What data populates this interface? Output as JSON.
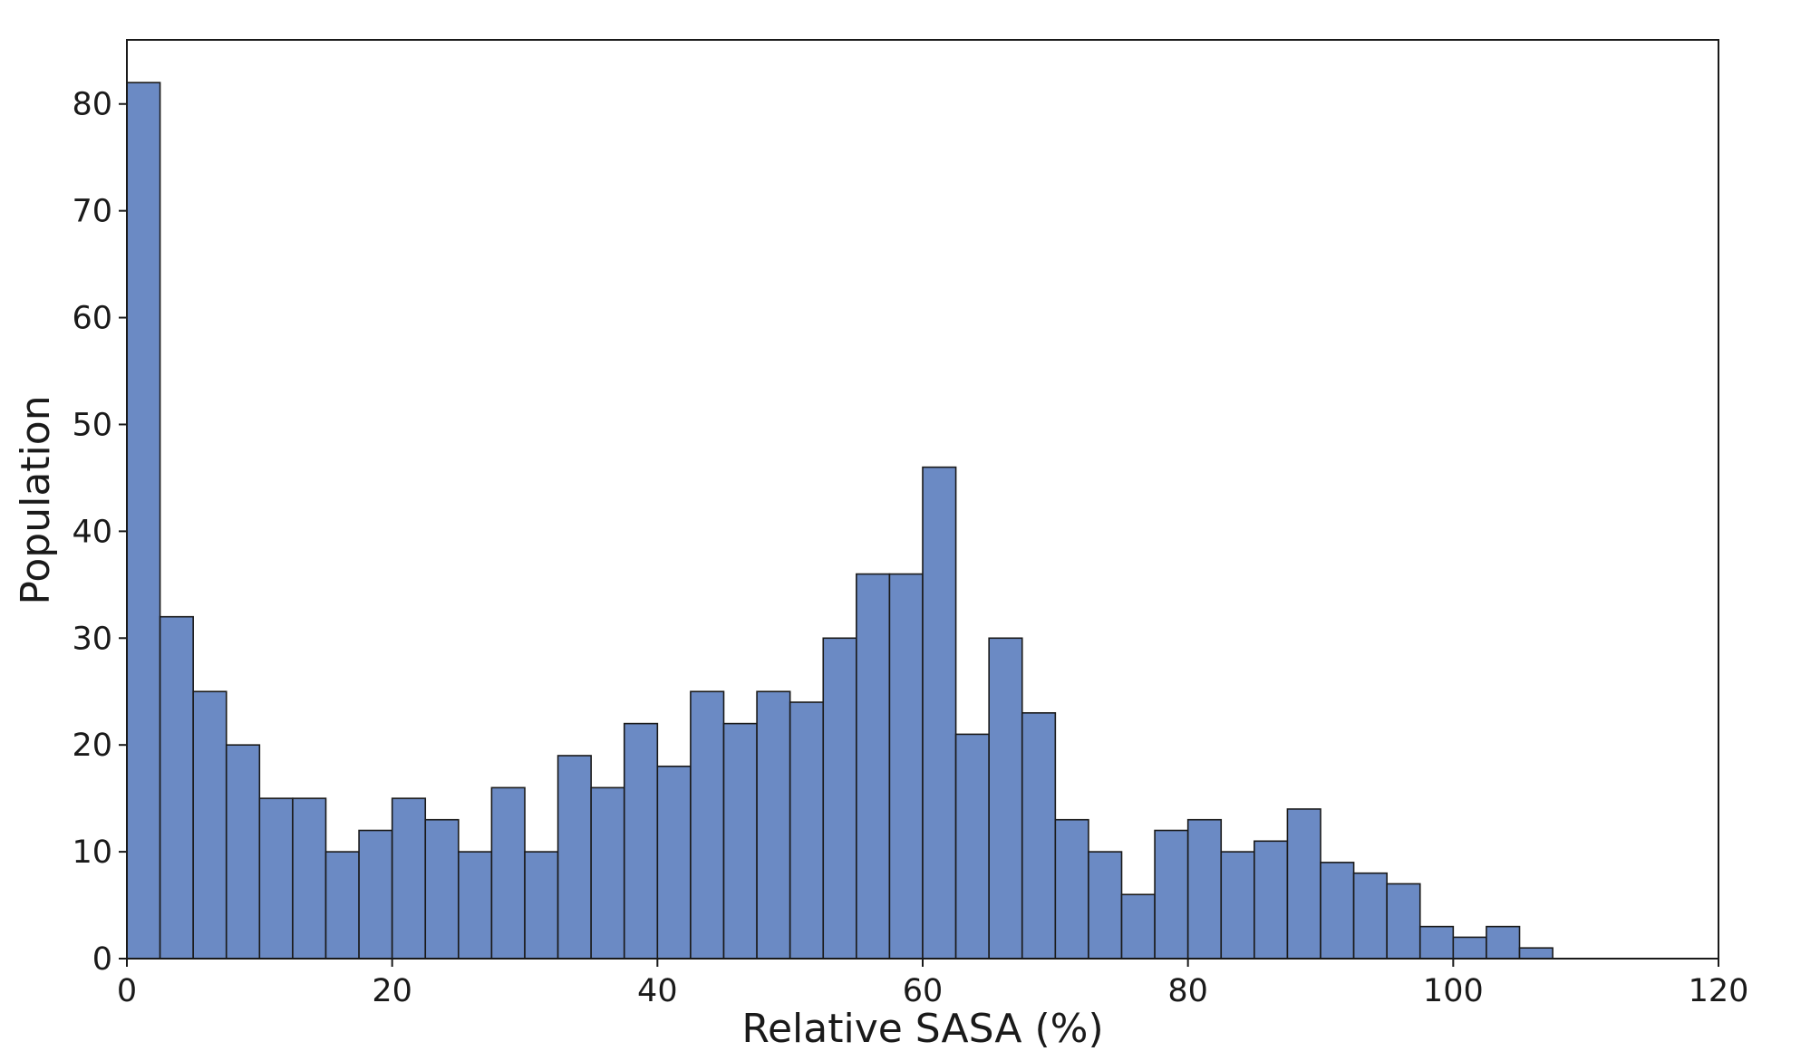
{
  "chart_data": {
    "type": "bar",
    "xlabel": "Relative SASA (%)",
    "ylabel": "Population",
    "xlim": [
      0,
      120
    ],
    "ylim": [
      0,
      86
    ],
    "xticks": [
      0,
      20,
      40,
      60,
      80,
      100,
      120
    ],
    "yticks": [
      0,
      10,
      20,
      30,
      40,
      50,
      60,
      70,
      80
    ],
    "grid": false,
    "bar_color": "#6b8ac4",
    "edge_color": "#1a1a1a",
    "bin_width": 2.5,
    "bin_start": 0,
    "values": [
      82,
      32,
      25,
      20,
      15,
      15,
      10,
      12,
      15,
      13,
      10,
      16,
      10,
      19,
      16,
      22,
      18,
      25,
      22,
      25,
      24,
      30,
      36,
      36,
      46,
      21,
      30,
      23,
      13,
      10,
      6,
      12,
      13,
      10,
      11,
      14,
      9,
      8,
      7,
      3,
      2,
      3,
      1
    ]
  }
}
